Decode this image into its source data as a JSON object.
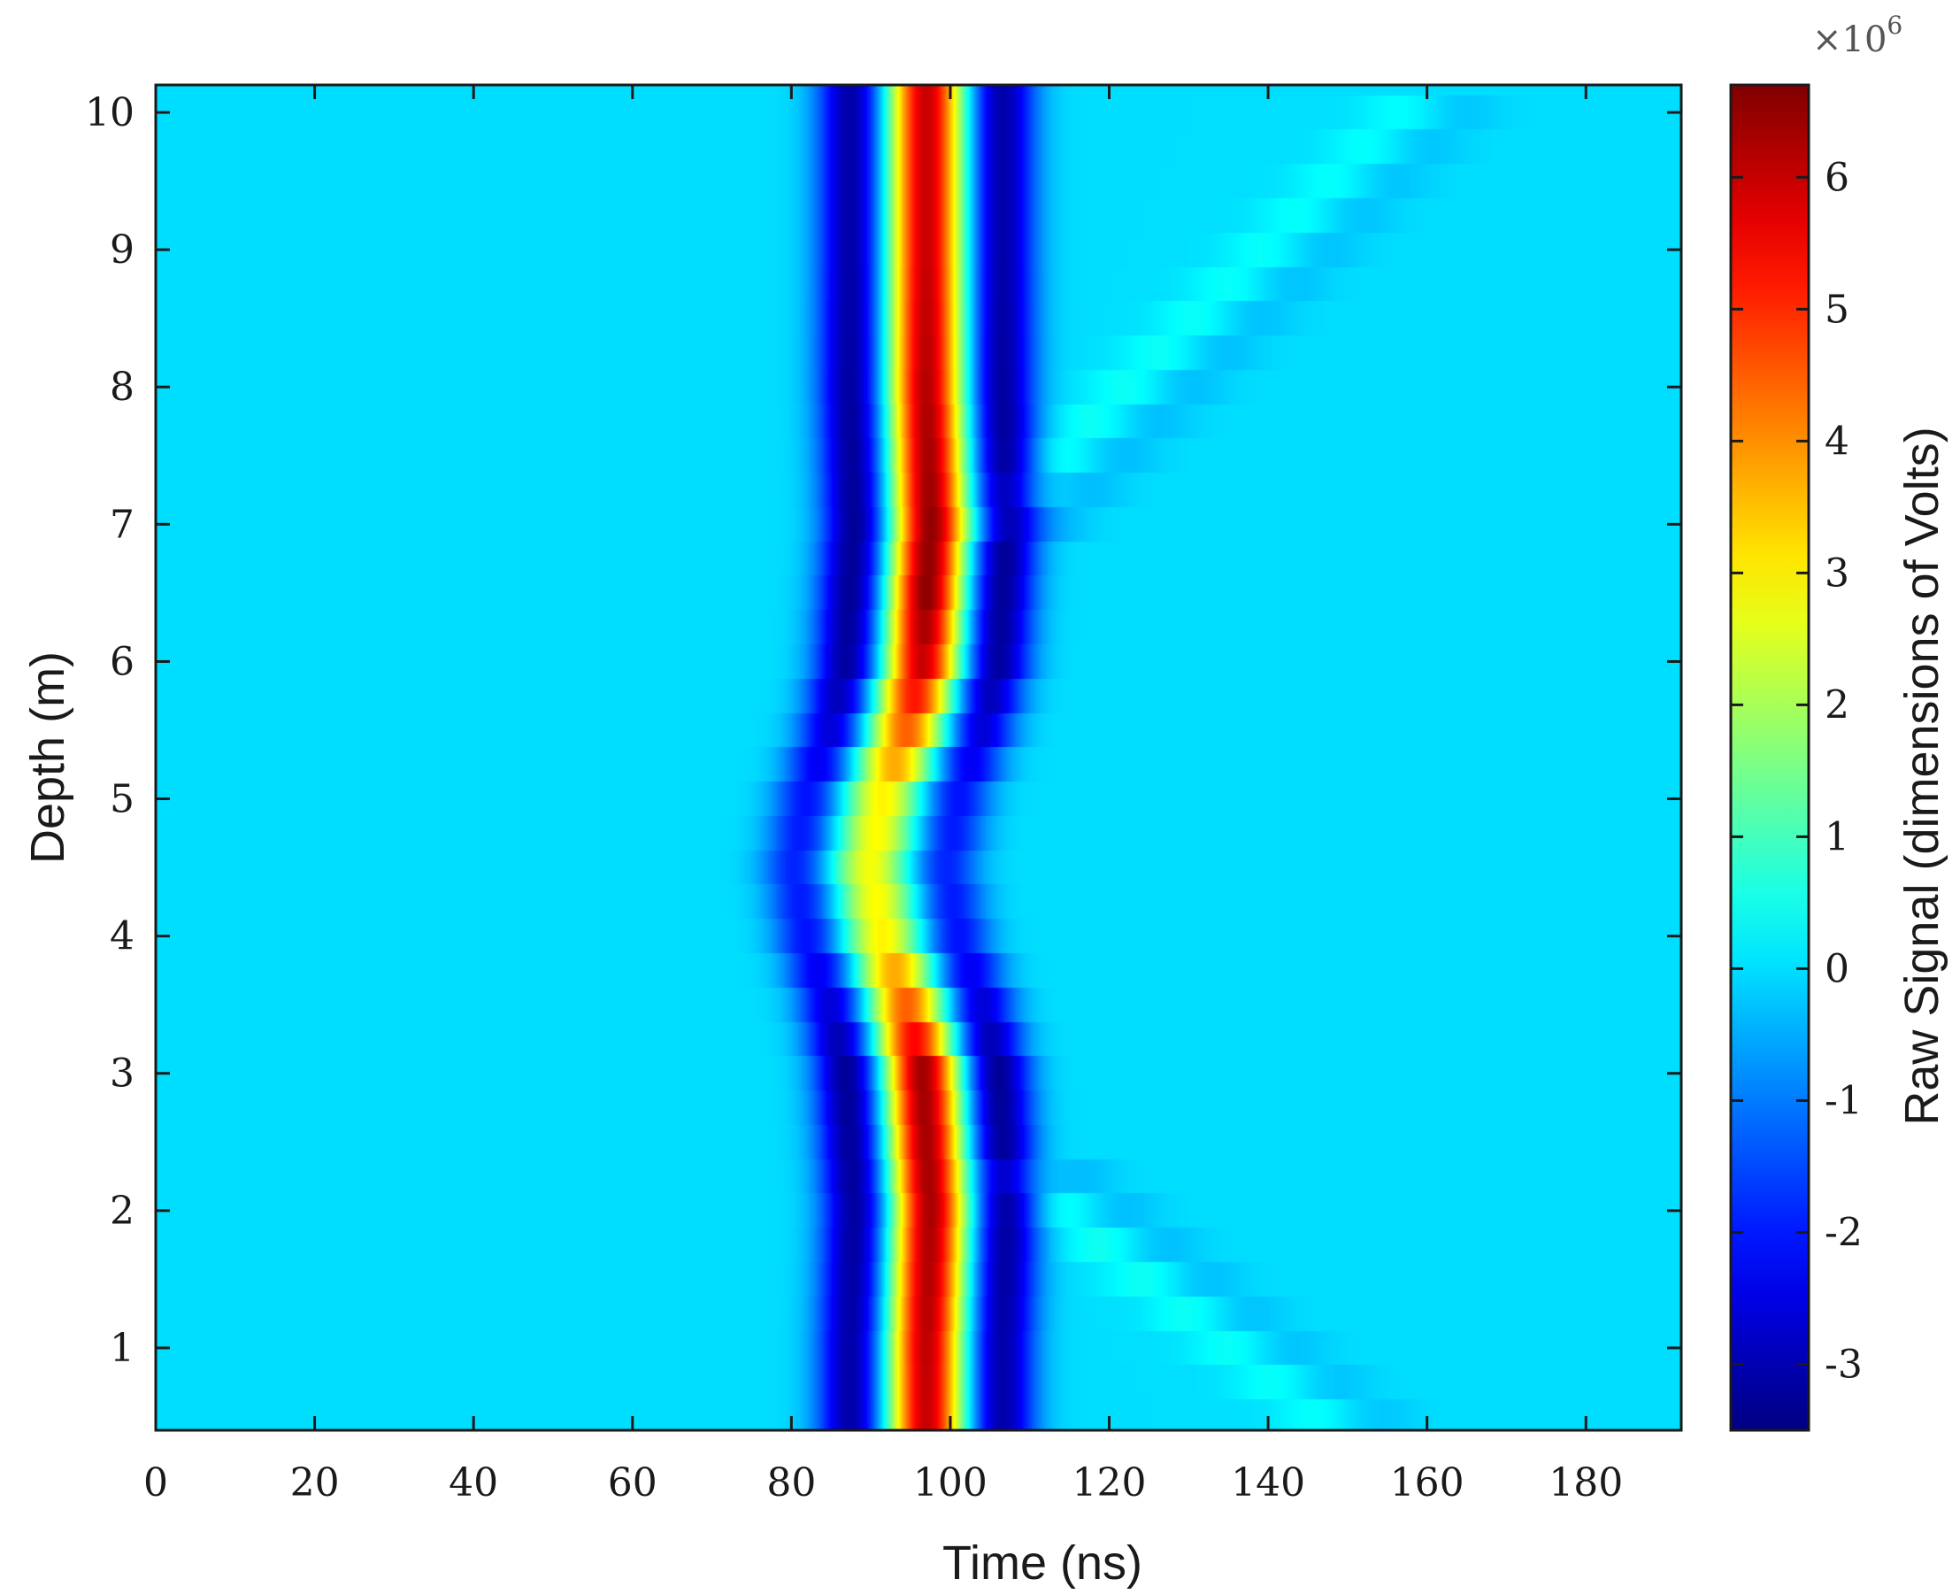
{
  "chart_data": {
    "type": "heatmap",
    "xlabel": "Time (ns)",
    "ylabel": "Depth (m)",
    "colorbar_label": "Raw Signal (dimensions of Volts)",
    "colorbar_exponent_base": "×10",
    "colorbar_exponent_power": "6",
    "colormap": "jet",
    "xlim": [
      0,
      192
    ],
    "ylim": [
      10.2,
      0.4
    ],
    "clim": [
      -3.5,
      6.7
    ],
    "x_ticks": [
      0,
      20,
      40,
      60,
      80,
      100,
      120,
      140,
      160,
      180
    ],
    "x_tick_labels": [
      "0",
      "20",
      "40",
      "60",
      "80",
      "100",
      "120",
      "140",
      "160",
      "180"
    ],
    "y_ticks": [
      1,
      2,
      3,
      4,
      5,
      6,
      7,
      8,
      9,
      10
    ],
    "y_tick_labels": [
      "1",
      "2",
      "3",
      "4",
      "5",
      "6",
      "7",
      "8",
      "9",
      "10"
    ],
    "colorbar_ticks": [
      -3,
      -2,
      -1,
      0,
      1,
      2,
      3,
      4,
      5,
      6
    ],
    "colorbar_tick_labels": [
      "-3",
      "-2",
      "-1",
      "0",
      "1",
      "2",
      "3",
      "4",
      "5",
      "6"
    ],
    "depth_step_m": 0.25,
    "direct_wave": {
      "depth_m": [
        0.4,
        1.0,
        2.0,
        3.0,
        3.5,
        4.0,
        4.5,
        5.0,
        5.5,
        6.0,
        6.5,
        7.0,
        8.0,
        9.0,
        10.2
      ],
      "peak_time_ns": [
        97,
        97,
        97.5,
        96.5,
        94.5,
        91.5,
        90,
        91.5,
        94.5,
        96.5,
        97,
        97.5,
        97,
        97,
        97
      ],
      "peak_amplitude_e6": [
        6.0,
        6.1,
        6.3,
        6.4,
        4.5,
        3.0,
        2.8,
        3.0,
        4.5,
        6.0,
        6.6,
        6.5,
        6.2,
        6.0,
        6.0
      ],
      "trough_amplitude_e6": [
        -3.3,
        -3.3,
        -3.4,
        -3.5,
        -2.8,
        -2.2,
        -2.0,
        -2.2,
        -2.8,
        -3.4,
        -3.5,
        -3.5,
        -3.4,
        -3.3,
        -3.3
      ]
    },
    "reflections": [
      {
        "start_depth_m": 2.4,
        "start_time_ns": 105,
        "end_depth_m": 0.4,
        "end_time_ns": 148,
        "amplitude_e6": 0.55
      },
      {
        "start_depth_m": 7.0,
        "start_time_ns": 105,
        "end_depth_m": 10.2,
        "end_time_ns": 160,
        "amplitude_e6": 0.5
      }
    ]
  }
}
